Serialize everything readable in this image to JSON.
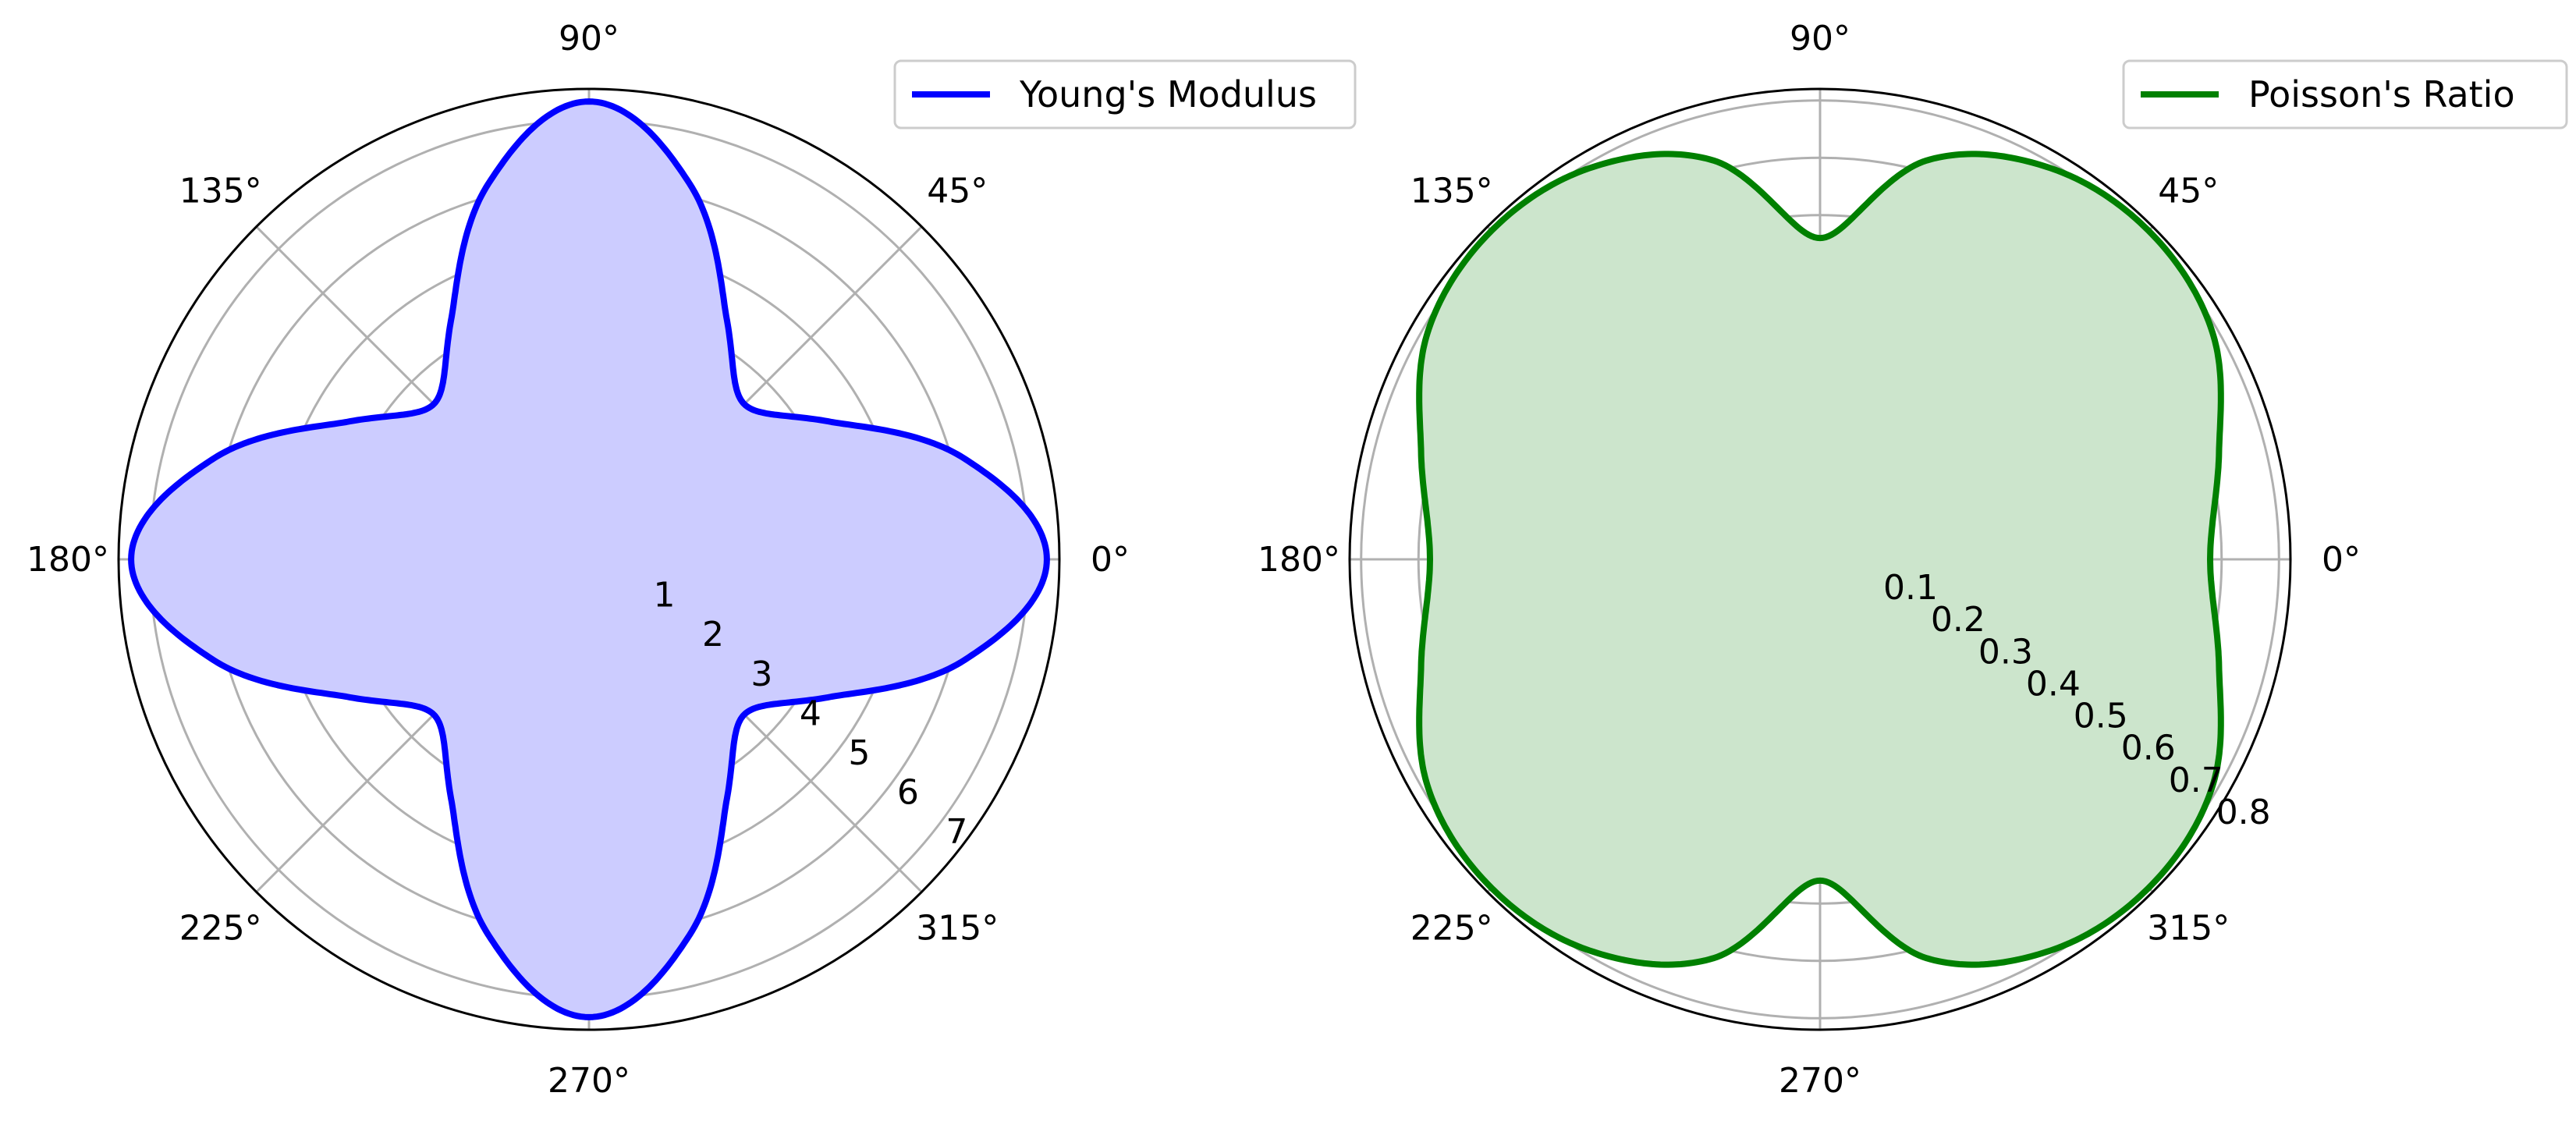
{
  "chart_data": [
    {
      "type": "polar-area",
      "title": "",
      "angular_ticks": [
        "0°",
        "45°",
        "90°",
        "135°",
        "180°",
        "225°",
        "270°",
        "315°"
      ],
      "angular_tick_values_deg": [
        0,
        45,
        90,
        135,
        180,
        225,
        270,
        315
      ],
      "radial_ticks": [
        "1",
        "2",
        "3",
        "4",
        "5",
        "6",
        "7"
      ],
      "radial_tick_values": [
        1,
        2,
        3,
        4,
        5,
        6,
        7
      ],
      "rlim": [
        0,
        7.5
      ],
      "grid": true,
      "legend_location": "top-right",
      "series": [
        {
          "name": "Young's Modulus",
          "color": "#0000ff",
          "fill_color": "#ccccff",
          "theta_deg": [
            0,
            15,
            30,
            45,
            60,
            75,
            90,
            105,
            120,
            135,
            150,
            165,
            180,
            195,
            210,
            225,
            240,
            255,
            270,
            285,
            300,
            315,
            330,
            345,
            360
          ],
          "r": [
            7.3,
            6.2,
            4.4,
            3.5,
            4.4,
            6.2,
            7.3,
            6.2,
            4.4,
            3.5,
            4.4,
            6.2,
            7.3,
            6.2,
            4.4,
            3.5,
            4.4,
            6.2,
            7.3,
            6.2,
            4.4,
            3.5,
            4.4,
            6.2,
            7.3
          ]
        }
      ]
    },
    {
      "type": "polar-area",
      "title": "",
      "angular_ticks": [
        "0°",
        "45°",
        "90°",
        "135°",
        "180°",
        "225°",
        "270°",
        "315°"
      ],
      "angular_tick_values_deg": [
        0,
        45,
        90,
        135,
        180,
        225,
        270,
        315
      ],
      "radial_ticks": [
        "0.1",
        "0.2",
        "0.3",
        "0.4",
        "0.5",
        "0.6",
        "0.7",
        "0.8"
      ],
      "radial_tick_values": [
        0.1,
        0.2,
        0.3,
        0.4,
        0.5,
        0.6,
        0.7,
        0.8
      ],
      "rlim": [
        0,
        0.82
      ],
      "grid": true,
      "legend_location": "top-right",
      "series": [
        {
          "name": "Poisson's Ratio",
          "color": "#008000",
          "fill_color": "#cce5cc",
          "theta_deg": [
            0,
            15,
            30,
            45,
            60,
            75,
            90,
            105,
            120,
            135,
            150,
            165,
            180,
            195,
            210,
            225,
            240,
            255,
            270,
            285,
            300,
            315,
            330,
            345,
            360
          ],
          "r": [
            0.68,
            0.72,
            0.79,
            0.81,
            0.79,
            0.72,
            0.56,
            0.72,
            0.79,
            0.81,
            0.79,
            0.72,
            0.68,
            0.72,
            0.79,
            0.81,
            0.79,
            0.72,
            0.56,
            0.72,
            0.79,
            0.81,
            0.79,
            0.72,
            0.68
          ]
        }
      ]
    }
  ]
}
